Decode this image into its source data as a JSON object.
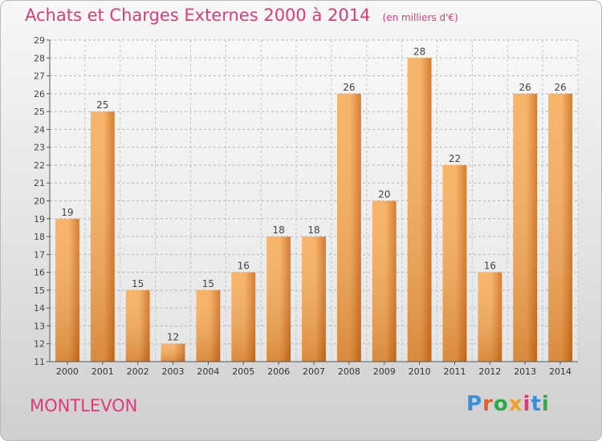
{
  "title": "Achats et Charges Externes 2000 à 2014",
  "unit": "(en milliers d'€)",
  "commune": "MONTLEVON",
  "logo_text": "Proxiti",
  "colors": {
    "title": "#e03a7a",
    "bar_light": "#f6ab5a",
    "bar_dark": "#cf6d18",
    "logo": [
      "#3a8fd8",
      "#e85b2a",
      "#2eaa4a",
      "#f0a020",
      "#e03a7a",
      "#3a8fd8",
      "#2eaa4a"
    ]
  },
  "chart_data": {
    "type": "bar",
    "categories": [
      "2000",
      "2001",
      "2002",
      "2003",
      "2004",
      "2005",
      "2006",
      "2007",
      "2008",
      "2009",
      "2010",
      "2011",
      "2012",
      "2013",
      "2014"
    ],
    "values": [
      19,
      25,
      15,
      12,
      15,
      16,
      18,
      18,
      26,
      20,
      28,
      22,
      16,
      26,
      26
    ],
    "ylim": [
      11,
      29
    ],
    "yticks": [
      11,
      12,
      13,
      14,
      15,
      16,
      17,
      18,
      19,
      20,
      21,
      22,
      23,
      24,
      25,
      26,
      27,
      28,
      29
    ],
    "grid": true,
    "legend": "none"
  }
}
